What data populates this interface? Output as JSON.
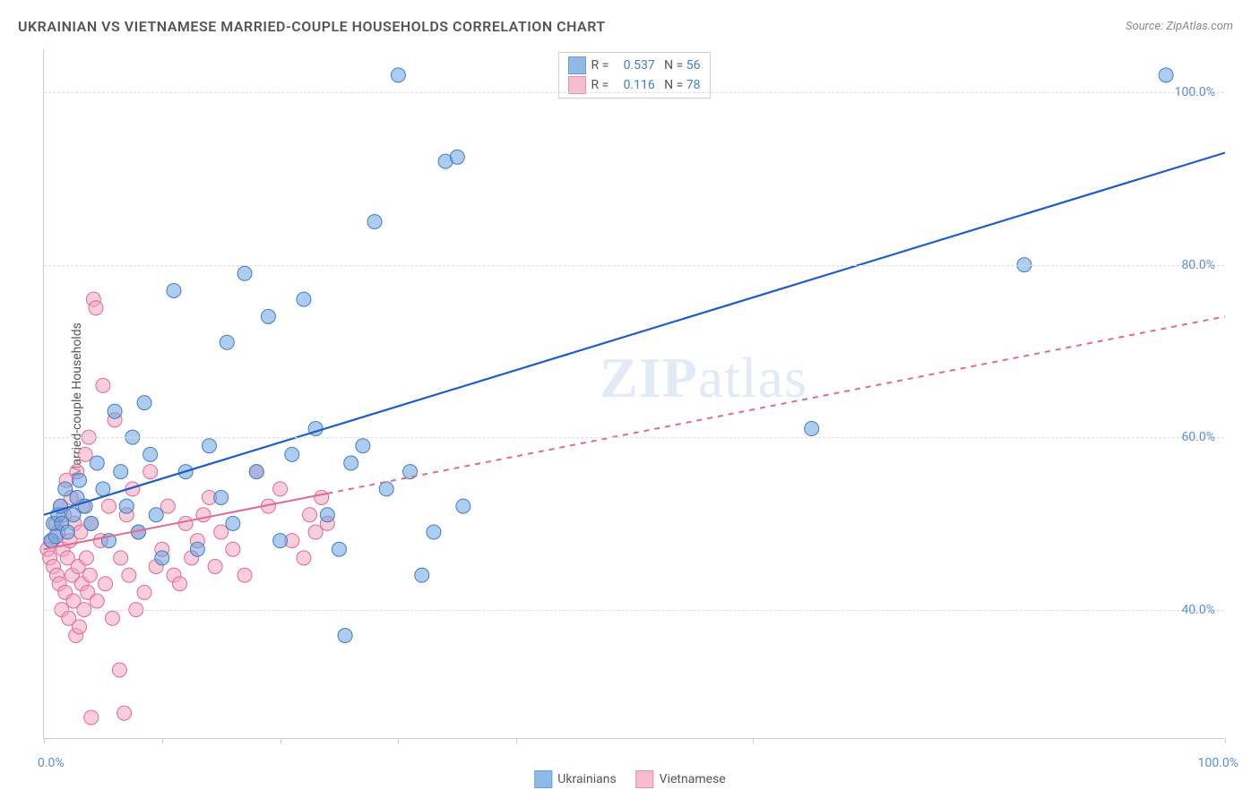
{
  "title": "UKRAINIAN VS VIETNAMESE MARRIED-COUPLE HOUSEHOLDS CORRELATION CHART",
  "source_label": "Source: ZipAtlas.com",
  "ylabel": "Married-couple Households",
  "watermark": {
    "zip": "ZIP",
    "atlas": "atlas"
  },
  "chart": {
    "type": "scatter",
    "background_color": "#ffffff",
    "grid_color": "#dddddd",
    "axis_color": "#cccccc",
    "tick_label_color": "#5b8fd6",
    "label_color": "#555555",
    "title_fontsize": 16,
    "label_fontsize": 14,
    "tick_fontsize": 14,
    "xlim": [
      0,
      100
    ],
    "ylim": [
      25,
      105
    ],
    "y_gridlines": [
      40,
      60,
      80,
      100
    ],
    "ytick_labels": [
      "40.0%",
      "60.0%",
      "80.0%",
      "100.0%"
    ],
    "x_ticks": [
      0,
      10,
      20,
      30,
      40,
      60,
      100
    ],
    "xtick_labels": {
      "0": "0.0%",
      "100": "100.0%"
    },
    "marker_radius": 8,
    "marker_opacity": 0.55,
    "series": [
      {
        "name": "Ukrainians",
        "color": "#6aa3e0",
        "stroke": "#3f7fc4",
        "R": "0.537",
        "N": "56",
        "trend": {
          "color": "#1f5fc4",
          "width": 2.2,
          "style": "solid",
          "from": [
            0,
            51
          ],
          "to": [
            100,
            93
          ],
          "solid_end_x": 100
        },
        "points": [
          [
            0.6,
            48
          ],
          [
            0.8,
            50
          ],
          [
            1.0,
            48.5
          ],
          [
            1.2,
            51
          ],
          [
            1.4,
            52
          ],
          [
            1.5,
            50
          ],
          [
            1.8,
            54
          ],
          [
            2.0,
            49
          ],
          [
            2.5,
            51
          ],
          [
            2.8,
            53
          ],
          [
            3.0,
            55
          ],
          [
            3.5,
            52
          ],
          [
            4.0,
            50
          ],
          [
            4.5,
            57
          ],
          [
            5.0,
            54
          ],
          [
            5.5,
            48
          ],
          [
            6.0,
            63
          ],
          [
            6.5,
            56
          ],
          [
            7.0,
            52
          ],
          [
            7.5,
            60
          ],
          [
            8.0,
            49
          ],
          [
            8.5,
            64
          ],
          [
            9.0,
            58
          ],
          [
            9.5,
            51
          ],
          [
            10.0,
            46
          ],
          [
            11.0,
            77
          ],
          [
            12.0,
            56
          ],
          [
            13.0,
            47
          ],
          [
            14.0,
            59
          ],
          [
            15.0,
            53
          ],
          [
            15.5,
            71
          ],
          [
            16.0,
            50
          ],
          [
            17.0,
            79
          ],
          [
            18.0,
            56
          ],
          [
            19.0,
            74
          ],
          [
            20.0,
            48
          ],
          [
            21.0,
            58
          ],
          [
            22.0,
            76
          ],
          [
            23.0,
            61
          ],
          [
            24.0,
            51
          ],
          [
            25.0,
            47
          ],
          [
            25.5,
            37
          ],
          [
            26.0,
            57
          ],
          [
            27.0,
            59
          ],
          [
            28.0,
            85
          ],
          [
            29.0,
            54
          ],
          [
            30.0,
            102
          ],
          [
            31.0,
            56
          ],
          [
            32.0,
            44
          ],
          [
            33.0,
            49
          ],
          [
            34.0,
            92
          ],
          [
            35.0,
            92.5
          ],
          [
            35.5,
            52
          ],
          [
            65.0,
            61
          ],
          [
            83.0,
            80
          ],
          [
            95.0,
            102
          ]
        ]
      },
      {
        "name": "Vietnamese",
        "color": "#f4a6bf",
        "stroke": "#e06a94",
        "R": "0.116",
        "N": "78",
        "trend": {
          "color": "#e06a94",
          "width": 2.0,
          "style": "solid-then-dashed",
          "from": [
            0,
            47
          ],
          "to": [
            100,
            74
          ],
          "solid_end_x": 24
        },
        "points": [
          [
            0.3,
            47
          ],
          [
            0.5,
            46
          ],
          [
            0.7,
            48
          ],
          [
            0.8,
            45
          ],
          [
            1.0,
            50
          ],
          [
            1.1,
            44
          ],
          [
            1.2,
            49
          ],
          [
            1.3,
            43
          ],
          [
            1.4,
            52
          ],
          [
            1.5,
            40
          ],
          [
            1.6,
            47
          ],
          [
            1.7,
            51
          ],
          [
            1.8,
            42
          ],
          [
            1.9,
            55
          ],
          [
            2.0,
            46
          ],
          [
            2.1,
            39
          ],
          [
            2.2,
            48
          ],
          [
            2.3,
            53
          ],
          [
            2.4,
            44
          ],
          [
            2.5,
            41
          ],
          [
            2.6,
            50
          ],
          [
            2.7,
            37
          ],
          [
            2.8,
            56
          ],
          [
            2.9,
            45
          ],
          [
            3.0,
            38
          ],
          [
            3.1,
            49
          ],
          [
            3.2,
            43
          ],
          [
            3.3,
            52
          ],
          [
            3.4,
            40
          ],
          [
            3.5,
            58
          ],
          [
            3.6,
            46
          ],
          [
            3.7,
            42
          ],
          [
            3.8,
            60
          ],
          [
            3.9,
            44
          ],
          [
            4.0,
            50
          ],
          [
            4.2,
            76
          ],
          [
            4.4,
            75
          ],
          [
            4.5,
            41
          ],
          [
            4.8,
            48
          ],
          [
            5.0,
            66
          ],
          [
            5.2,
            43
          ],
          [
            5.5,
            52
          ],
          [
            5.8,
            39
          ],
          [
            6.0,
            62
          ],
          [
            6.4,
            33
          ],
          [
            6.5,
            46
          ],
          [
            6.8,
            28
          ],
          [
            7.0,
            51
          ],
          [
            7.2,
            44
          ],
          [
            7.5,
            54
          ],
          [
            7.8,
            40
          ],
          [
            8.0,
            49
          ],
          [
            8.5,
            42
          ],
          [
            9.0,
            56
          ],
          [
            9.5,
            45
          ],
          [
            10.0,
            47
          ],
          [
            10.5,
            52
          ],
          [
            11.0,
            44
          ],
          [
            11.5,
            43
          ],
          [
            12.0,
            50
          ],
          [
            12.5,
            46
          ],
          [
            13.0,
            48
          ],
          [
            13.5,
            51
          ],
          [
            14.0,
            53
          ],
          [
            14.5,
            45
          ],
          [
            15.0,
            49
          ],
          [
            16.0,
            47
          ],
          [
            17.0,
            44
          ],
          [
            18.0,
            56
          ],
          [
            19.0,
            52
          ],
          [
            20.0,
            54
          ],
          [
            21.0,
            48
          ],
          [
            22.0,
            46
          ],
          [
            22.5,
            51
          ],
          [
            23.0,
            49
          ],
          [
            23.5,
            53
          ],
          [
            24.0,
            50
          ],
          [
            4.0,
            27.5
          ]
        ]
      }
    ],
    "legend_top": {
      "border_color": "#cccccc",
      "text_color": "#555555",
      "value_color": "#3f7fc4"
    },
    "legend_bottom": {
      "items": [
        "Ukrainians",
        "Vietnamese"
      ]
    }
  }
}
